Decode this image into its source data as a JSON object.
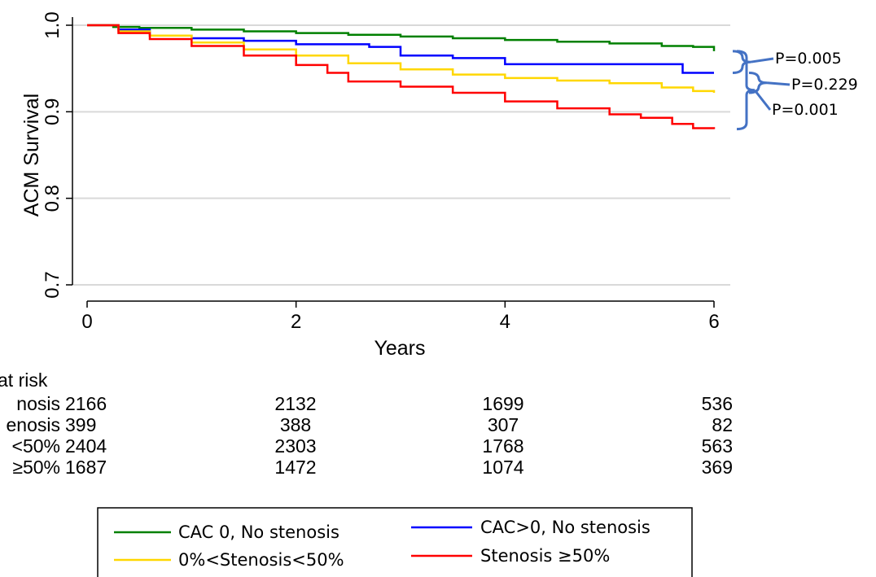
{
  "chart_data": {
    "type": "line",
    "title": "",
    "xlabel": "Years",
    "ylabel": "ACM Survival",
    "xlim": [
      0,
      6
    ],
    "ylim": [
      0.7,
      1.0
    ],
    "x_ticks": [
      "0",
      "2",
      "4",
      "6"
    ],
    "y_ticks": [
      "0.7",
      "0.8",
      "0.9",
      "1.0"
    ],
    "grid": "horizontal",
    "series": [
      {
        "name": "CAC 0, No stenosis",
        "color": "#008000",
        "points": [
          [
            0,
            1.0
          ],
          [
            0.25,
            0.998
          ],
          [
            0.5,
            0.997
          ],
          [
            1,
            0.995
          ],
          [
            1.5,
            0.993
          ],
          [
            2,
            0.991
          ],
          [
            2.5,
            0.989
          ],
          [
            3,
            0.987
          ],
          [
            3.5,
            0.985
          ],
          [
            4,
            0.983
          ],
          [
            4.5,
            0.981
          ],
          [
            5,
            0.979
          ],
          [
            5.5,
            0.976
          ],
          [
            5.8,
            0.975
          ],
          [
            6,
            0.97
          ]
        ]
      },
      {
        "name": "CAC>0, No stenosis",
        "color": "#0000ff",
        "points": [
          [
            0,
            1.0
          ],
          [
            0.3,
            0.995
          ],
          [
            0.6,
            0.988
          ],
          [
            1.0,
            0.985
          ],
          [
            1.5,
            0.982
          ],
          [
            2,
            0.978
          ],
          [
            2.5,
            0.978
          ],
          [
            2.7,
            0.975
          ],
          [
            3.0,
            0.965
          ],
          [
            3.5,
            0.962
          ],
          [
            4,
            0.955
          ],
          [
            4.5,
            0.955
          ],
          [
            5,
            0.955
          ],
          [
            5.5,
            0.955
          ],
          [
            5.7,
            0.945
          ],
          [
            6,
            0.945
          ]
        ]
      },
      {
        "name": "0%<Stenosis<50%",
        "color": "#ffd700",
        "points": [
          [
            0,
            1.0
          ],
          [
            0.3,
            0.993
          ],
          [
            0.6,
            0.988
          ],
          [
            1.0,
            0.98
          ],
          [
            1.5,
            0.972
          ],
          [
            2,
            0.965
          ],
          [
            2.5,
            0.956
          ],
          [
            3,
            0.949
          ],
          [
            3.5,
            0.943
          ],
          [
            4,
            0.939
          ],
          [
            4.5,
            0.936
          ],
          [
            5,
            0.933
          ],
          [
            5.5,
            0.928
          ],
          [
            5.8,
            0.924
          ],
          [
            6,
            0.922
          ]
        ]
      },
      {
        "name": "Stenosis ≥50%",
        "color": "#ff0000",
        "points": [
          [
            0,
            1.0
          ],
          [
            0.3,
            0.991
          ],
          [
            0.6,
            0.984
          ],
          [
            1.0,
            0.976
          ],
          [
            1.5,
            0.965
          ],
          [
            2,
            0.954
          ],
          [
            2.3,
            0.945
          ],
          [
            2.5,
            0.935
          ],
          [
            3,
            0.929
          ],
          [
            3.5,
            0.922
          ],
          [
            4,
            0.912
          ],
          [
            4.5,
            0.904
          ],
          [
            5,
            0.897
          ],
          [
            5.3,
            0.893
          ],
          [
            5.6,
            0.886
          ],
          [
            5.8,
            0.881
          ],
          [
            6,
            0.88
          ]
        ]
      }
    ],
    "annotations": [
      "P=0.005",
      "P=0.229",
      "P=0.001"
    ],
    "legend_position": "bottom",
    "at_risk": {
      "title": "at risk",
      "rows": [
        {
          "label": "nosis",
          "values": [
            "2166",
            "2132",
            "1699",
            "536"
          ]
        },
        {
          "label": "enosis",
          "values": [
            "399",
            "388",
            "307",
            "82"
          ]
        },
        {
          "label": "<50%",
          "values": [
            "2404",
            "2303",
            "1768",
            "563"
          ]
        },
        {
          "label": "≥50%",
          "values": [
            "1687",
            "1472",
            "1074",
            "369"
          ]
        }
      ]
    }
  }
}
